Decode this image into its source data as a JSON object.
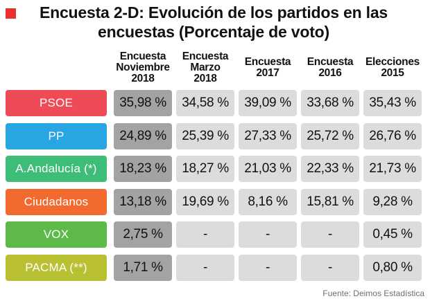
{
  "chart_data": {
    "type": "table",
    "title": "Encuesta 2-D: Evolución de los partidos en las encuestas (Porcentaje de voto)",
    "columns": [
      "Encuesta\nNoviembre\n2018",
      "Encuesta\nMarzo\n2018",
      "Encuesta\n2017",
      "Encuesta\n2016",
      "Elecciones\n2015"
    ],
    "rows": [
      {
        "party": "PSOE",
        "color": "#ef4b56",
        "values": [
          "35,98 %",
          "34,58 %",
          "39,09 %",
          "33,68 %",
          "35,43 %"
        ]
      },
      {
        "party": "PP",
        "color": "#2aa5e4",
        "values": [
          "24,89 %",
          "25,39 %",
          "27,33 %",
          "25,72 %",
          "26,76 %"
        ]
      },
      {
        "party": "A.Andalucía (*)",
        "color": "#3dbd78",
        "values": [
          "18,23 %",
          "18,27 %",
          "21,03 %",
          "22,33 %",
          "21,73 %"
        ]
      },
      {
        "party": "Ciudadanos",
        "color": "#f26a2e",
        "values": [
          "13,18 %",
          "19,69 %",
          "8,16 %",
          "15,81 %",
          "9,28 %"
        ]
      },
      {
        "party": "VOX",
        "color": "#5dba48",
        "values": [
          "2,75 %",
          "-",
          "-",
          "-",
          "0,45 %"
        ]
      },
      {
        "party": "PACMA (**)",
        "color": "#b9c132",
        "values": [
          "1,71 %",
          "-",
          "-",
          "-",
          "0,80 %"
        ]
      }
    ],
    "source": "Fuente: Deimos Estadística"
  }
}
